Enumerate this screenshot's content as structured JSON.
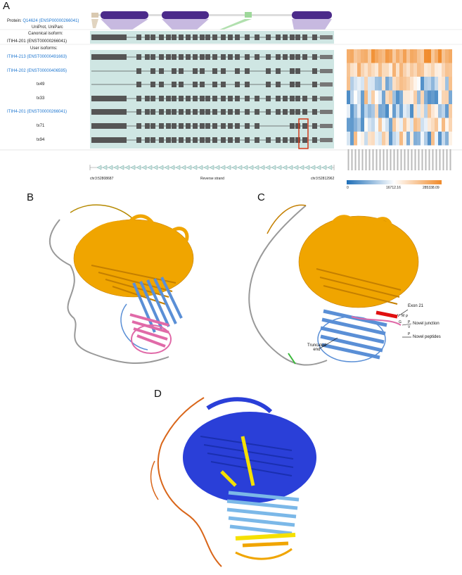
{
  "panels": {
    "a": "A",
    "b": "B",
    "c": "C",
    "d": "D"
  },
  "panel_a": {
    "protein_prefix": "Protein:",
    "protein_id": "Q14624",
    "protein_ensp": "(ENSP00000266041)",
    "protein_links": "UniProt, UniParc",
    "canonical_header": "Canonical isoform:",
    "canonical_id": "ITIH4-201 (ENST00000266041)",
    "user_header": "User isoforms:",
    "isoforms": [
      {
        "label": "ITIH4-213 (ENST00000491663)",
        "linked": true
      },
      {
        "label": "ITIH4-202 (ENST00000406595)",
        "linked": true
      },
      {
        "label": "tx49",
        "linked": false
      },
      {
        "label": "tx33",
        "linked": false
      },
      {
        "label": "ITIH4-201 (ENST00000266041)",
        "linked": true
      },
      {
        "label": "tx71",
        "linked": false
      },
      {
        "label": "tx94",
        "linked": false
      }
    ],
    "coord_left": "chr3:52808687",
    "strand": "Reverse strand",
    "coord_right": "chr3:52812962",
    "scale_min": "0",
    "scale_mid": "16712.16",
    "scale_max": "285338.09",
    "colors": {
      "bg": "#cfe6e3",
      "exon": "#555555",
      "domain": "#4b2a8a",
      "domain_fill": "#b9a8d8",
      "green": "#9ed89a",
      "highlight": "#d43a1a",
      "heat_low": "#1f6fb8",
      "heat_high": "#f08a2a"
    }
  },
  "panel_c": {
    "exon21": "Exon 21",
    "novel_junction": "Novel junction",
    "novel_peptides": "Novel peptides",
    "truncated": "Truncated\nend",
    "residues": [
      "V",
      "M",
      "P",
      "G",
      "P",
      "V",
      "P"
    ]
  }
}
